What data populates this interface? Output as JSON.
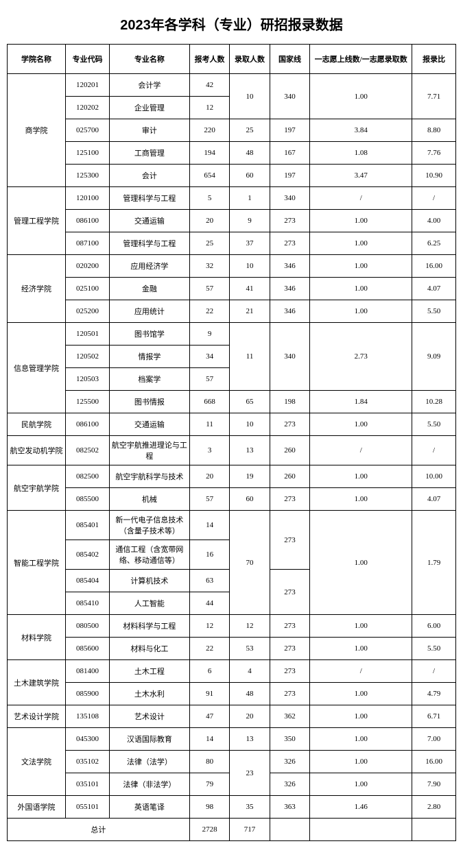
{
  "title": "2023年各学科（专业）研招报录数据",
  "headers": {
    "college": "学院名称",
    "code": "专业代码",
    "major": "专业名称",
    "applicants": "报考人数",
    "admitted": "录取人数",
    "national_line": "国家线",
    "ratio_label": "一志愿上线数/一志愿录取数",
    "admit_ratio": "报录比"
  },
  "totals": {
    "label": "总计",
    "applicants": "2728",
    "admitted": "717"
  },
  "colleges": [
    {
      "name": "商学院",
      "rows": [
        {
          "code": "120201",
          "major": "会计学",
          "app": "42",
          "adm": "10",
          "adm_span": 2,
          "line": "340",
          "line_span": 2,
          "r": "1.00",
          "r_span": 2,
          "ar": "7.71",
          "ar_span": 2
        },
        {
          "code": "120202",
          "major": "企业管理",
          "app": "12"
        },
        {
          "code": "025700",
          "major": "审计",
          "app": "220",
          "adm": "25",
          "line": "197",
          "r": "3.84",
          "ar": "8.80"
        },
        {
          "code": "125100",
          "major": "工商管理",
          "app": "194",
          "adm": "48",
          "line": "167",
          "r": "1.08",
          "ar": "7.76"
        },
        {
          "code": "125300",
          "major": "会计",
          "app": "654",
          "adm": "60",
          "line": "197",
          "r": "3.47",
          "ar": "10.90"
        }
      ]
    },
    {
      "name": "管理工程学院",
      "rows": [
        {
          "code": "120100",
          "major": "管理科学与工程",
          "app": "5",
          "adm": "1",
          "line": "340",
          "r": "/",
          "ar": "/"
        },
        {
          "code": "086100",
          "major": "交通运输",
          "app": "20",
          "adm": "9",
          "line": "273",
          "r": "1.00",
          "ar": "4.00"
        },
        {
          "code": "087100",
          "major": "管理科学与工程",
          "app": "25",
          "adm": "37",
          "line": "273",
          "r": "1.00",
          "ar": "6.25"
        }
      ]
    },
    {
      "name": "经济学院",
      "rows": [
        {
          "code": "020200",
          "major": "应用经济学",
          "app": "32",
          "adm": "10",
          "line": "346",
          "r": "1.00",
          "ar": "16.00"
        },
        {
          "code": "025100",
          "major": "金融",
          "app": "57",
          "adm": "41",
          "line": "346",
          "r": "1.00",
          "ar": "4.07"
        },
        {
          "code": "025200",
          "major": "应用统计",
          "app": "22",
          "adm": "21",
          "line": "346",
          "r": "1.00",
          "ar": "5.50"
        }
      ]
    },
    {
      "name": "信息管理学院",
      "rows": [
        {
          "code": "120501",
          "major": "图书馆学",
          "app": "9",
          "adm": "11",
          "adm_span": 3,
          "line": "340",
          "line_span": 3,
          "r": "2.73",
          "r_span": 3,
          "ar": "9.09",
          "ar_span": 3
        },
        {
          "code": "120502",
          "major": "情报学",
          "app": "34"
        },
        {
          "code": "120503",
          "major": "档案学",
          "app": "57"
        },
        {
          "code": "125500",
          "major": "图书情报",
          "app": "668",
          "adm": "65",
          "line": "198",
          "r": "1.84",
          "ar": "10.28"
        }
      ]
    },
    {
      "name": "民航学院",
      "rows": [
        {
          "code": "086100",
          "major": "交通运输",
          "app": "11",
          "adm": "10",
          "line": "273",
          "r": "1.00",
          "ar": "5.50"
        }
      ]
    },
    {
      "name": "航空发动机学院",
      "rows": [
        {
          "code": "082502",
          "major": "航空宇航推进理论与工程",
          "app": "3",
          "adm": "13",
          "line": "260",
          "r": "/",
          "ar": "/"
        }
      ]
    },
    {
      "name": "航空宇航学院",
      "rows": [
        {
          "code": "082500",
          "major": "航空宇航科学与技术",
          "app": "20",
          "adm": "19",
          "line": "260",
          "r": "1.00",
          "ar": "10.00"
        },
        {
          "code": "085500",
          "major": "机械",
          "app": "57",
          "adm": "60",
          "line": "273",
          "r": "1.00",
          "ar": "4.07"
        }
      ]
    },
    {
      "name": "智能工程学院",
      "rows": [
        {
          "code": "085401",
          "major": "新一代电子信息技术（含量子技术等）",
          "app": "14",
          "adm": "70",
          "adm_span": 4,
          "line": "273",
          "line_span": 2,
          "r": "1.00",
          "r_span": 4,
          "ar": "1.79",
          "ar_span": 4
        },
        {
          "code": "085402",
          "major": "通信工程（含宽带网络、移动通信等）",
          "app": "16"
        },
        {
          "code": "085404",
          "major": "计算机技术",
          "app": "63",
          "line": "273",
          "line_span": 2
        },
        {
          "code": "085410",
          "major": "人工智能",
          "app": "44"
        }
      ]
    },
    {
      "name": "材料学院",
      "rows": [
        {
          "code": "080500",
          "major": "材料科学与工程",
          "app": "12",
          "adm": "12",
          "line": "273",
          "r": "1.00",
          "ar": "6.00"
        },
        {
          "code": "085600",
          "major": "材料与化工",
          "app": "22",
          "adm": "53",
          "line": "273",
          "r": "1.00",
          "ar": "5.50"
        }
      ]
    },
    {
      "name": "土木建筑学院",
      "rows": [
        {
          "code": "081400",
          "major": "土木工程",
          "app": "6",
          "adm": "4",
          "line": "273",
          "r": "/",
          "ar": "/"
        },
        {
          "code": "085900",
          "major": "土木水利",
          "app": "91",
          "adm": "48",
          "line": "273",
          "r": "1.00",
          "ar": "4.79"
        }
      ]
    },
    {
      "name": "艺术设计学院",
      "rows": [
        {
          "code": "135108",
          "major": "艺术设计",
          "app": "47",
          "adm": "20",
          "line": "362",
          "r": "1.00",
          "ar": "6.71"
        }
      ]
    },
    {
      "name": "文法学院",
      "rows": [
        {
          "code": "045300",
          "major": "汉语国际教育",
          "app": "14",
          "adm": "13",
          "line": "350",
          "r": "1.00",
          "ar": "7.00"
        },
        {
          "code": "035102",
          "major": "法律（法学）",
          "app": "80",
          "adm": "23",
          "adm_span": 2,
          "line": "326",
          "r": "1.00",
          "ar": "16.00"
        },
        {
          "code": "035101",
          "major": "法律（非法学）",
          "app": "79",
          "line": "326",
          "r": "1.00",
          "ar": "7.90"
        }
      ]
    },
    {
      "name": "外国语学院",
      "rows": [
        {
          "code": "055101",
          "major": "英语笔译",
          "app": "98",
          "adm": "35",
          "line": "363",
          "r": "1.46",
          "ar": "2.80"
        }
      ]
    }
  ]
}
